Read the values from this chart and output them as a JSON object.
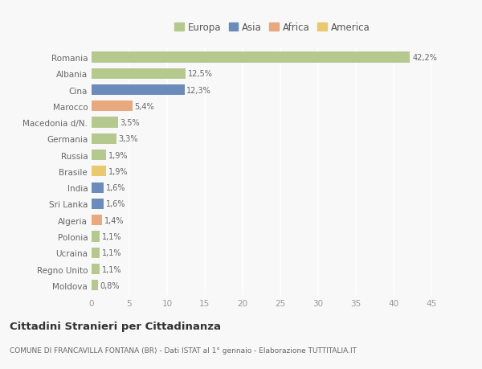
{
  "countries": [
    "Romania",
    "Albania",
    "Cina",
    "Marocco",
    "Macedonia d/N.",
    "Germania",
    "Russia",
    "Brasile",
    "India",
    "Sri Lanka",
    "Algeria",
    "Polonia",
    "Ucraina",
    "Regno Unito",
    "Moldova"
  ],
  "values": [
    42.2,
    12.5,
    12.3,
    5.4,
    3.5,
    3.3,
    1.9,
    1.9,
    1.6,
    1.6,
    1.4,
    1.1,
    1.1,
    1.1,
    0.8
  ],
  "labels": [
    "42,2%",
    "12,5%",
    "12,3%",
    "5,4%",
    "3,5%",
    "3,3%",
    "1,9%",
    "1,9%",
    "1,6%",
    "1,6%",
    "1,4%",
    "1,1%",
    "1,1%",
    "1,1%",
    "0,8%"
  ],
  "colors": [
    "#b5c98e",
    "#b5c98e",
    "#6b8cba",
    "#e8a97e",
    "#b5c98e",
    "#b5c98e",
    "#b5c98e",
    "#e8c96e",
    "#6b8cba",
    "#6b8cba",
    "#e8a97e",
    "#b5c98e",
    "#b5c98e",
    "#b5c98e",
    "#b5c98e"
  ],
  "continent_colors": {
    "Europa": "#b5c98e",
    "Asia": "#6b8cba",
    "Africa": "#e8a97e",
    "America": "#e8c96e"
  },
  "title": "Cittadini Stranieri per Cittadinanza",
  "subtitle": "COMUNE DI FRANCAVILLA FONTANA (BR) - Dati ISTAT al 1° gennaio - Elaborazione TUTTITALIA.IT",
  "xlim": [
    0,
    46
  ],
  "xticks": [
    0,
    5,
    10,
    15,
    20,
    25,
    30,
    35,
    40,
    45
  ],
  "background_color": "#f8f8f8",
  "grid_color": "#ffffff",
  "bar_height": 0.65
}
